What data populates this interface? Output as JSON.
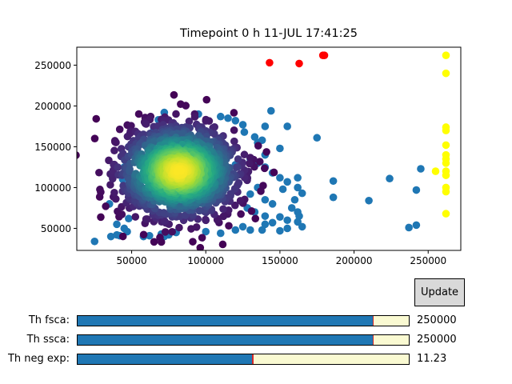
{
  "figure": {
    "title": "Timepoint 0 h 11-JUL 17:41:25"
  },
  "chart_data": {
    "type": "scatter",
    "title": "Timepoint 0 h 11-JUL 17:41:25",
    "xlabel": "",
    "ylabel": "",
    "xlim": [
      13000,
      272000
    ],
    "ylim": [
      23000,
      272000
    ],
    "xticks": [
      50000,
      100000,
      150000,
      200000,
      250000
    ],
    "yticks": [
      50000,
      100000,
      150000,
      200000,
      250000
    ],
    "grid": false,
    "series": [
      {
        "role": "outliers",
        "color": "#1f77b4",
        "points": [
          [
            25000,
            34000
          ],
          [
            35000,
            80000
          ],
          [
            36000,
            40000
          ],
          [
            40000,
            42000
          ],
          [
            42000,
            41000
          ],
          [
            45000,
            50000
          ],
          [
            40000,
            55000
          ],
          [
            48000,
            62000
          ],
          [
            47000,
            46000
          ],
          [
            50000,
            95000
          ],
          [
            58000,
            40000
          ],
          [
            62000,
            41000
          ],
          [
            70000,
            43000
          ],
          [
            72000,
            40000
          ],
          [
            75000,
            42000
          ],
          [
            80000,
            45000
          ],
          [
            68000,
            183000
          ],
          [
            72000,
            192000
          ],
          [
            65000,
            172000
          ],
          [
            95000,
            190000
          ],
          [
            110000,
            187000
          ],
          [
            115000,
            185000
          ],
          [
            120000,
            182000
          ],
          [
            125000,
            177000
          ],
          [
            126000,
            168000
          ],
          [
            133000,
            162000
          ],
          [
            135000,
            155000
          ],
          [
            138000,
            158000
          ],
          [
            140000,
            175000
          ],
          [
            144000,
            194000
          ],
          [
            150000,
            148000
          ],
          [
            155000,
            175000
          ],
          [
            135000,
            130000
          ],
          [
            140000,
            125000
          ],
          [
            145000,
            118000
          ],
          [
            150000,
            112000
          ],
          [
            155000,
            107000
          ],
          [
            152000,
            98000
          ],
          [
            162000,
            112000
          ],
          [
            162000,
            100000
          ],
          [
            165000,
            93000
          ],
          [
            160000,
            85000
          ],
          [
            158000,
            75000
          ],
          [
            162000,
            70000
          ],
          [
            150000,
            64000
          ],
          [
            155000,
            60000
          ],
          [
            162000,
            58000
          ],
          [
            163000,
            65000
          ],
          [
            165000,
            52000
          ],
          [
            155000,
            50000
          ],
          [
            150000,
            47000
          ],
          [
            145000,
            57000
          ],
          [
            140000,
            55000
          ],
          [
            138000,
            48000
          ],
          [
            130000,
            48000
          ],
          [
            125000,
            52000
          ],
          [
            120000,
            48000
          ],
          [
            110000,
            44000
          ],
          [
            100000,
            46000
          ],
          [
            140000,
            65000
          ],
          [
            145000,
            80000
          ],
          [
            175000,
            161000
          ],
          [
            186000,
            108000
          ],
          [
            186000,
            88000
          ],
          [
            210000,
            84000
          ],
          [
            224000,
            111000
          ],
          [
            237000,
            51000
          ],
          [
            242000,
            54000
          ],
          [
            242000,
            97000
          ],
          [
            245000,
            123000
          ],
          [
            130000,
            92000
          ],
          [
            135000,
            100000
          ],
          [
            140000,
            85000
          ],
          [
            128000,
            75000
          ],
          [
            133000,
            70000
          ],
          [
            140000,
            140000
          ],
          [
            130000,
            135000
          ],
          [
            128000,
            118000
          ],
          [
            120000,
            128000
          ],
          [
            50000,
            115000
          ],
          [
            45000,
            125000
          ],
          [
            47000,
            132000
          ],
          [
            44000,
            110000
          ],
          [
            52000,
            138000
          ],
          [
            48000,
            150000
          ]
        ]
      },
      {
        "role": "density",
        "colormap": "viridis",
        "center": [
          82000,
          120000
        ],
        "spread": [
          20000,
          28000
        ],
        "count": 1400
      },
      {
        "role": "above-threshold",
        "color": "#ff0000",
        "points": [
          [
            143000,
            253000
          ],
          [
            163000,
            252000
          ],
          [
            179000,
            262000
          ],
          [
            180000,
            262000
          ]
        ]
      },
      {
        "role": "saturated",
        "color": "#ffff00",
        "points": [
          [
            262000,
            262000
          ],
          [
            262000,
            240000
          ],
          [
            262000,
            174000
          ],
          [
            262000,
            170000
          ],
          [
            262000,
            152000
          ],
          [
            262000,
            140000
          ],
          [
            262000,
            135000
          ],
          [
            262000,
            130000
          ],
          [
            262000,
            120000
          ],
          [
            262000,
            115000
          ],
          [
            262000,
            100000
          ],
          [
            262000,
            95000
          ],
          [
            262000,
            68000
          ],
          [
            255000,
            120000
          ]
        ]
      }
    ]
  },
  "controls": {
    "update_label": "Update",
    "sliders": [
      {
        "label": "Th fsca:",
        "value_text": "250000",
        "fraction": 0.893
      },
      {
        "label": "Th ssca:",
        "value_text": "250000",
        "fraction": 0.893
      },
      {
        "label": "Th neg exp:",
        "value_text": "11.23",
        "fraction": 0.53
      }
    ]
  }
}
